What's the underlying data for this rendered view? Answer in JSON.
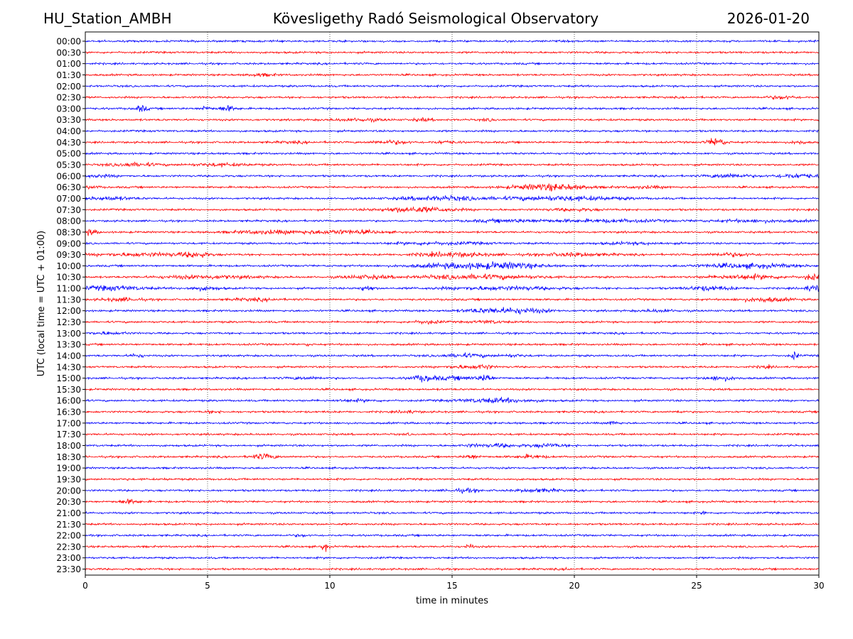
{
  "header": {
    "station": "HU_Station_AMBH",
    "observatory": "Kövesligethy Radó Seismological Observatory",
    "date": "2026-01-20"
  },
  "chart_data": {
    "type": "line",
    "title": "Kövesligethy Radó Seismological Observatory",
    "xlabel": "time in minutes",
    "ylabel": "UTC (local time = UTC + 01:00)",
    "xlim": [
      0,
      30
    ],
    "xticks": [
      0,
      5,
      10,
      15,
      20,
      25,
      30
    ],
    "grid": "vertical dotted lines at x ticks",
    "legend": "none",
    "colors": [
      "#0000ff",
      "#ff0000"
    ],
    "rows": [
      {
        "label": "00:00",
        "bursts": []
      },
      {
        "label": "00:30",
        "bursts": []
      },
      {
        "label": "01:00",
        "bursts": []
      },
      {
        "label": "01:30",
        "bursts": [
          [
            7.2,
            0.5,
            2.2
          ]
        ]
      },
      {
        "label": "02:00",
        "bursts": []
      },
      {
        "label": "02:30",
        "bursts": [
          [
            4.8,
            0.1,
            1.5
          ],
          [
            28.5,
            0.6,
            2.5
          ]
        ]
      },
      {
        "label": "03:00",
        "bursts": [
          [
            2.3,
            0.25,
            4
          ],
          [
            4.9,
            0.2,
            3
          ],
          [
            5.8,
            0.35,
            3.5
          ],
          [
            8.6,
            0.1,
            2
          ]
        ]
      },
      {
        "label": "03:30",
        "bursts": [
          [
            11.2,
            1.0,
            2.2
          ],
          [
            13.8,
            0.4,
            2.2
          ],
          [
            16.5,
            0.3,
            1.8
          ]
        ]
      },
      {
        "label": "04:00",
        "bursts": []
      },
      {
        "label": "04:30",
        "bursts": [
          [
            12.5,
            0.8,
            2.5
          ],
          [
            14.7,
            0.5,
            2.2
          ],
          [
            25.8,
            0.35,
            5
          ],
          [
            29.2,
            0.3,
            2.5
          ],
          [
            8.5,
            0.8,
            1.6
          ]
        ]
      },
      {
        "label": "05:00",
        "bursts": []
      },
      {
        "label": "05:30",
        "bursts": [
          [
            2.0,
            1.0,
            2.5
          ],
          [
            5.5,
            1.2,
            2.2
          ]
        ]
      },
      {
        "label": "06:00",
        "bursts": [
          [
            0.5,
            0.8,
            2
          ],
          [
            26.3,
            0.8,
            3
          ],
          [
            29.1,
            0.9,
            3
          ]
        ]
      },
      {
        "label": "06:30",
        "bursts": [
          [
            19.0,
            1.5,
            4
          ],
          [
            23,
            0.8,
            2
          ],
          [
            0.3,
            0.3,
            2
          ]
        ]
      },
      {
        "label": "07:00",
        "bursts": [
          [
            1.0,
            1.0,
            2.5
          ],
          [
            14.5,
            1.8,
            2.8
          ],
          [
            19.5,
            2.5,
            3
          ]
        ]
      },
      {
        "label": "07:30",
        "bursts": [
          [
            13.5,
            1.5,
            3.5
          ],
          [
            20.0,
            1.0,
            2
          ]
        ]
      },
      {
        "label": "08:00",
        "bursts": [
          [
            17.5,
            1.8,
            2.2
          ],
          [
            21.5,
            2.0,
            2.2
          ],
          [
            27.5,
            2.0,
            2
          ]
        ]
      },
      {
        "label": "08:30",
        "bursts": [
          [
            0.2,
            0.3,
            3.5
          ],
          [
            7.5,
            1.5,
            2.5
          ],
          [
            10.5,
            1.5,
            2.8
          ]
        ]
      },
      {
        "label": "09:00",
        "bursts": [
          [
            14.5,
            2.0,
            2
          ],
          [
            22.5,
            1.5,
            1.8
          ]
        ]
      },
      {
        "label": "09:30",
        "bursts": [
          [
            2.5,
            2.0,
            2.5
          ],
          [
            4.5,
            0.5,
            3.5
          ],
          [
            15.0,
            1.5,
            3
          ],
          [
            20.0,
            1.5,
            2.5
          ],
          [
            26.5,
            1.0,
            2.5
          ]
        ]
      },
      {
        "label": "10:00",
        "bursts": [
          [
            15.5,
            2.0,
            3.5
          ],
          [
            17.5,
            1.2,
            3
          ],
          [
            27.0,
            2.0,
            3
          ]
        ]
      },
      {
        "label": "10:30",
        "bursts": [
          [
            5.0,
            2.0,
            2.5
          ],
          [
            11.5,
            1.0,
            2.5
          ],
          [
            16.0,
            2.5,
            3
          ],
          [
            27.0,
            1.5,
            3
          ],
          [
            29.7,
            0.3,
            4
          ]
        ]
      },
      {
        "label": "11:00",
        "bursts": [
          [
            1.0,
            1.5,
            3
          ],
          [
            4.8,
            0.7,
            2.5
          ],
          [
            11.5,
            0.3,
            3.5
          ],
          [
            17.0,
            2.5,
            2.5
          ],
          [
            25.5,
            1.0,
            3
          ],
          [
            29.8,
            0.4,
            4
          ]
        ]
      },
      {
        "label": "11:30",
        "bursts": [
          [
            1.5,
            0.8,
            2.5
          ],
          [
            7.0,
            1.0,
            2
          ],
          [
            27.8,
            1.0,
            3
          ]
        ]
      },
      {
        "label": "12:00",
        "bursts": [
          [
            16.5,
            1.2,
            3
          ],
          [
            18.0,
            1.0,
            2.8
          ],
          [
            23.5,
            0.8,
            2
          ]
        ]
      },
      {
        "label": "12:30",
        "bursts": [
          [
            14.0,
            0.6,
            2.5
          ],
          [
            16.5,
            0.6,
            2.2
          ]
        ]
      },
      {
        "label": "13:00",
        "bursts": [
          [
            0.8,
            0.6,
            2
          ],
          [
            1.7,
            0.1,
            2.5
          ]
        ]
      },
      {
        "label": "13:30",
        "bursts": [
          [
            9.1,
            0.05,
            2.5
          ]
        ]
      },
      {
        "label": "14:00",
        "bursts": [
          [
            2.1,
            0.3,
            2.5
          ],
          [
            15.5,
            1.0,
            2.5
          ],
          [
            17.5,
            0.5,
            2
          ],
          [
            29.0,
            0.15,
            5
          ]
        ]
      },
      {
        "label": "14:30",
        "bursts": [
          [
            15.5,
            0.8,
            2.2
          ],
          [
            16.3,
            0.3,
            3
          ],
          [
            27.8,
            0.3,
            2.2
          ]
        ]
      },
      {
        "label": "15:00",
        "bursts": [
          [
            13.8,
            0.5,
            3.5
          ],
          [
            16.4,
            0.2,
            5
          ],
          [
            15.2,
            1.2,
            2.5
          ],
          [
            26.0,
            0.6,
            3
          ],
          [
            9.0,
            0.8,
            2
          ]
        ]
      },
      {
        "label": "15:30",
        "bursts": []
      },
      {
        "label": "16:00",
        "bursts": [
          [
            16.8,
            1.5,
            3
          ],
          [
            11.0,
            1.0,
            1.8
          ]
        ]
      },
      {
        "label": "16:30",
        "bursts": [
          [
            5.2,
            0.3,
            2
          ],
          [
            13.2,
            0.4,
            2.2
          ],
          [
            24.3,
            0.15,
            2.5
          ]
        ]
      },
      {
        "label": "17:00",
        "bursts": [
          [
            21.6,
            0.2,
            3
          ]
        ]
      },
      {
        "label": "17:30",
        "bursts": [
          [
            13.2,
            0.05,
            2.2
          ]
        ]
      },
      {
        "label": "18:00",
        "bursts": [
          [
            17.0,
            0.7,
            2.5
          ],
          [
            18.9,
            0.8,
            2.5
          ],
          [
            15.8,
            0.4,
            2
          ]
        ]
      },
      {
        "label": "18:30",
        "bursts": [
          [
            7.3,
            0.5,
            3.5
          ],
          [
            15.8,
            0.3,
            3
          ],
          [
            18.2,
            0.6,
            2.5
          ]
        ]
      },
      {
        "label": "19:00",
        "bursts": []
      },
      {
        "label": "19:30",
        "bursts": [
          [
            3.3,
            0.05,
            2.5
          ],
          [
            1.7,
            0.05,
            2
          ]
        ]
      },
      {
        "label": "20:00",
        "bursts": [
          [
            15.5,
            0.6,
            2.5
          ],
          [
            18.5,
            0.8,
            2.5
          ]
        ]
      },
      {
        "label": "20:30",
        "bursts": [
          [
            1.8,
            0.4,
            3
          ]
        ]
      },
      {
        "label": "21:00",
        "bursts": [
          [
            25.3,
            0.08,
            2.5
          ]
        ]
      },
      {
        "label": "21:30",
        "bursts": []
      },
      {
        "label": "22:00",
        "bursts": [
          [
            8.8,
            0.3,
            1.8
          ]
        ]
      },
      {
        "label": "22:30",
        "bursts": [
          [
            9.8,
            0.15,
            5
          ],
          [
            15.7,
            0.15,
            3.5
          ]
        ]
      },
      {
        "label": "23:00",
        "bursts": []
      },
      {
        "label": "23:30",
        "bursts": [
          [
            19.7,
            0.1,
            2.2
          ]
        ]
      }
    ]
  }
}
